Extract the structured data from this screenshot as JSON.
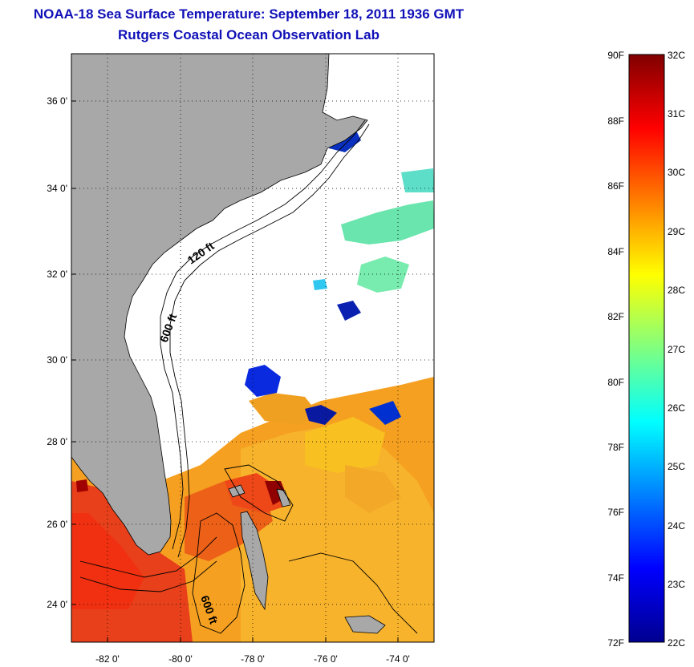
{
  "header": {
    "title": "NOAA-18 Sea Surface Temperature:  September 18, 2011 1936 GMT",
    "subtitle": "Rutgers Coastal Ocean Observation Lab"
  },
  "map": {
    "lon_ticks": [
      "-82 0'",
      "-80 0'",
      "-78 0'",
      "-76 0'",
      "-74 0'"
    ],
    "lat_ticks": [
      "36 0'",
      "34 0'",
      "32 0'",
      "30 0'",
      "28 0'",
      "26 0'",
      "24 0'"
    ],
    "lon_range": [
      -83,
      -73
    ],
    "lat_range": [
      23,
      37
    ],
    "land_color": "#a8a8a8",
    "contour_labels": [
      "120 ft",
      "600 ft",
      "600 ft"
    ]
  },
  "colorbar": {
    "fahrenheit_labels": [
      "90F",
      "88F",
      "86F",
      "84F",
      "82F",
      "80F",
      "78F",
      "76F",
      "74F",
      "72F"
    ],
    "celsius_labels": [
      "32C",
      "31C",
      "30C",
      "29C",
      "28C",
      "27C",
      "26C",
      "25C",
      "24C",
      "23C",
      "22C"
    ],
    "colormap": "jet",
    "range_c": [
      22,
      32
    ]
  }
}
